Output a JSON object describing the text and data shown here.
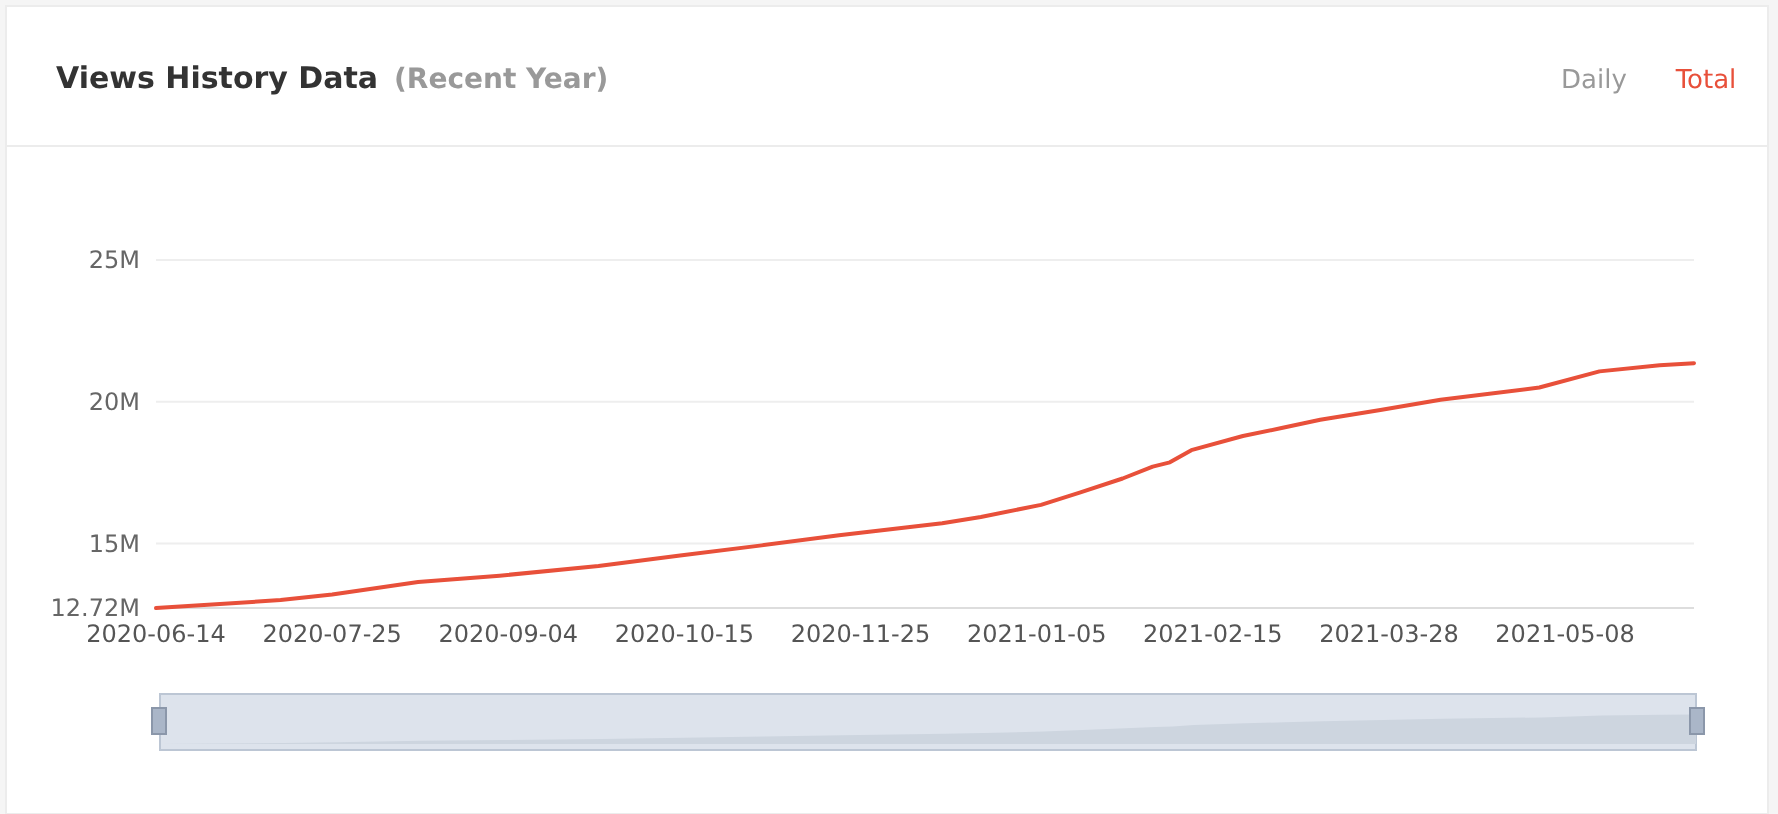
{
  "chart_data": {
    "type": "line",
    "title": "Views History Data",
    "subtitle": "(Recent Year)",
    "annotations": [
      "Daily",
      "Total"
    ],
    "x": [
      "2020-06-14",
      "2020-07-13",
      "2020-07-25",
      "2020-08-14",
      "2020-09-02",
      "2020-09-25",
      "2020-10-14",
      "2020-11-02",
      "2020-11-20",
      "2020-12-14",
      "2020-12-23",
      "2021-01-06",
      "2021-01-15",
      "2021-01-25",
      "2021-02-01",
      "2021-02-05",
      "2021-02-10",
      "2021-02-22",
      "2021-03-03",
      "2021-03-12",
      "2021-03-26",
      "2021-04-09",
      "2021-05-02",
      "2021-05-16",
      "2021-05-30",
      "2021-06-07"
    ],
    "series": [
      {
        "color": "#e8503a",
        "values": [
          12.72,
          13.0,
          13.2,
          13.64,
          13.86,
          14.2,
          14.57,
          14.93,
          15.29,
          15.71,
          15.93,
          16.36,
          16.79,
          17.29,
          17.71,
          17.86,
          18.29,
          18.79,
          19.07,
          19.36,
          19.71,
          20.07,
          20.5,
          21.07,
          21.29,
          21.36
        ]
      }
    ],
    "xlim": [
      "2020-06-14",
      "2021-06-07"
    ],
    "xticks": [
      "2020-06-14",
      "2020-07-25",
      "2020-09-04",
      "2020-10-15",
      "2020-11-25",
      "2021-01-05",
      "2021-02-15",
      "2021-03-28",
      "2021-05-08"
    ],
    "ylim": [
      12.72,
      25
    ],
    "yticks": [
      {
        "value": 12.72,
        "label": "12.72M"
      },
      {
        "value": 15,
        "label": "15M"
      },
      {
        "value": 20,
        "label": "20M"
      },
      {
        "value": 25,
        "label": "25M"
      }
    ],
    "grid": "y",
    "marker": "none",
    "line_style": "solid"
  }
}
